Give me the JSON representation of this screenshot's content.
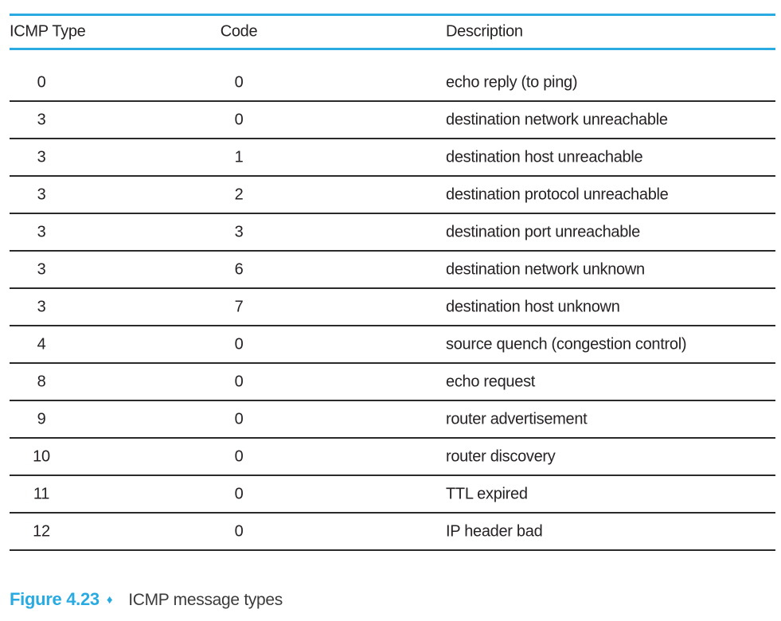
{
  "colors": {
    "accent": "#29abe2",
    "rule_dark": "#2a2a2a",
    "text": "#262226",
    "caption_text": "#3b3b3b"
  },
  "table": {
    "headers": [
      "ICMP Type",
      "Code",
      "Description"
    ],
    "rows": [
      {
        "type": "0",
        "code": "0",
        "description": "echo reply (to ping)"
      },
      {
        "type": "3",
        "code": "0",
        "description": "destination network unreachable"
      },
      {
        "type": "3",
        "code": "1",
        "description": "destination host unreachable"
      },
      {
        "type": "3",
        "code": "2",
        "description": "destination protocol unreachable"
      },
      {
        "type": "3",
        "code": "3",
        "description": "destination port unreachable"
      },
      {
        "type": "3",
        "code": "6",
        "description": "destination network unknown"
      },
      {
        "type": "3",
        "code": "7",
        "description": "destination host unknown"
      },
      {
        "type": "4",
        "code": "0",
        "description": "source quench (congestion control)"
      },
      {
        "type": "8",
        "code": "0",
        "description": "echo request"
      },
      {
        "type": "9",
        "code": "0",
        "description": "router advertisement"
      },
      {
        "type": "10",
        "code": "0",
        "description": "router discovery"
      },
      {
        "type": "11",
        "code": "0",
        "description": "TTL expired"
      },
      {
        "type": "12",
        "code": "0",
        "description": "IP header bad"
      }
    ]
  },
  "caption": {
    "figure_label": "Figure 4.23",
    "bullet": "♦",
    "text": "ICMP message types"
  }
}
